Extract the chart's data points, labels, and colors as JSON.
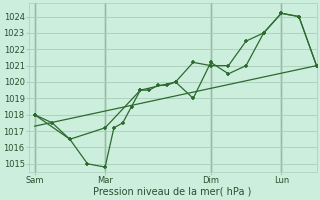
{
  "xlabel": "Pression niveau de la mer( hPa )",
  "bg_color": "#cceedd",
  "grid_color": "#aaccbb",
  "line_color": "#2d6a2d",
  "vline_color": "#3a6e3a",
  "ylim": [
    1014.5,
    1024.8
  ],
  "yticks": [
    1015,
    1016,
    1017,
    1018,
    1019,
    1020,
    1021,
    1022,
    1023,
    1024
  ],
  "xtick_labels": [
    "Sam",
    "Mar",
    "Dim",
    "Lun"
  ],
  "xtick_positions": [
    0,
    24,
    60,
    84
  ],
  "xlim": [
    -2,
    96
  ],
  "line1_x": [
    0,
    6,
    12,
    18,
    24,
    27,
    30,
    33,
    36,
    39,
    42,
    45,
    48,
    54,
    60,
    66,
    72,
    78,
    84,
    90,
    96
  ],
  "line1_y": [
    1018.0,
    1017.5,
    1016.5,
    1015.0,
    1014.8,
    1017.2,
    1017.5,
    1018.5,
    1019.5,
    1019.5,
    1019.8,
    1019.8,
    1020.0,
    1019.0,
    1021.2,
    1020.5,
    1021.0,
    1023.0,
    1024.2,
    1024.0,
    1021.0
  ],
  "line2_x": [
    0,
    12,
    24,
    36,
    48,
    54,
    60,
    66,
    72,
    78,
    84,
    90,
    96
  ],
  "line2_y": [
    1018.0,
    1016.5,
    1017.2,
    1019.5,
    1020.0,
    1021.2,
    1021.0,
    1021.0,
    1022.5,
    1023.0,
    1024.2,
    1024.0,
    1021.0
  ],
  "trend_x": [
    0,
    96
  ],
  "trend_y": [
    1017.3,
    1021.0
  ],
  "vlines_x": [
    0,
    24,
    60,
    84
  ],
  "figsize": [
    3.2,
    2.0
  ],
  "dpi": 100
}
